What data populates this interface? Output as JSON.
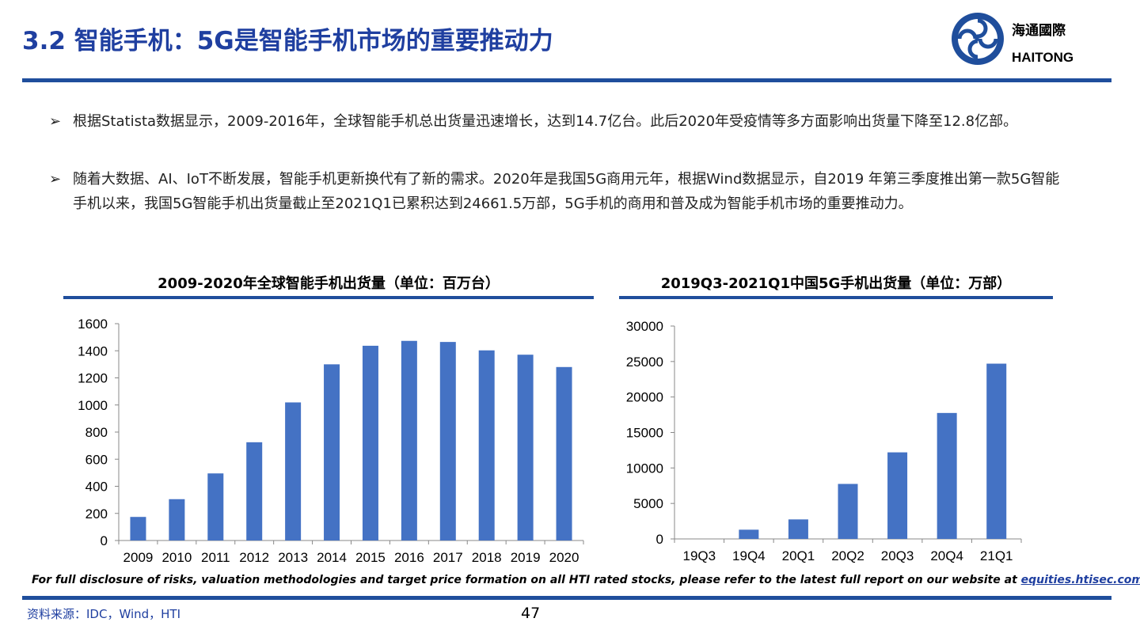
{
  "header": {
    "title": "3.2 智能手机：5G是智能手机市场的重要推动力",
    "logo_cn": "海通國際",
    "logo_en": "HAITONG",
    "brand_color": "#1f4e9c"
  },
  "bullets": [
    {
      "icon": "arrow-bullet",
      "text": "根据Statista数据显示，2009-2016年，全球智能手机总出货量迅速增长，达到14.7亿台。此后2020年受疫情等多方面影响出货量下降至12.8亿部。"
    },
    {
      "icon": "arrow-bullet",
      "text": "随着大数据、AI、IoT不断发展，智能手机更新换代有了新的需求。2020年是我国5G商用元年，根据Wind数据显示，自2019 年第三季度推出第一款5G智能手机以来，我国5G智能手机出货量截止至2021Q1已累积达到24661.5万部，5G手机的商用和普及成为智能手机市场的重要推动力。"
    }
  ],
  "chart_data": [
    {
      "type": "bar",
      "title": "2009-2020年全球智能手机出货量（单位：百万台）",
      "categories": [
        "2009",
        "2010",
        "2011",
        "2012",
        "2013",
        "2014",
        "2015",
        "2016",
        "2017",
        "2018",
        "2019",
        "2020"
      ],
      "values": [
        174,
        305,
        495,
        725,
        1019,
        1300,
        1437,
        1473,
        1465,
        1403,
        1371,
        1280
      ],
      "ylim": [
        0,
        1600
      ],
      "yticks": [
        "0",
        "200",
        "400",
        "600",
        "800",
        "1000",
        "1200",
        "1400",
        "1600"
      ],
      "color": "#4472c4",
      "xlabel": "",
      "ylabel": ""
    },
    {
      "type": "bar",
      "title": "2019Q3-2021Q1中国5G手机出货量（单位：万部）",
      "categories": [
        "19Q3",
        "19Q4",
        "20Q1",
        "20Q2",
        "20Q3",
        "20Q4",
        "21Q1"
      ],
      "values": [
        0,
        1300,
        2750,
        7750,
        12200,
        17750,
        24700
      ],
      "ylim": [
        0,
        30000
      ],
      "yticks": [
        "0",
        "5000",
        "10000",
        "15000",
        "20000",
        "25000",
        "30000"
      ],
      "color": "#4472c4",
      "xlabel": "",
      "ylabel": ""
    }
  ],
  "footer": {
    "disclaimer": "For full disclosure of risks, valuation methodologies and target price formation on all HTI rated stocks, please refer to the latest full report on our website at ",
    "link": "equities.htisec.com",
    "source": "资料来源：IDC，Wind，HTI",
    "page": "47"
  }
}
